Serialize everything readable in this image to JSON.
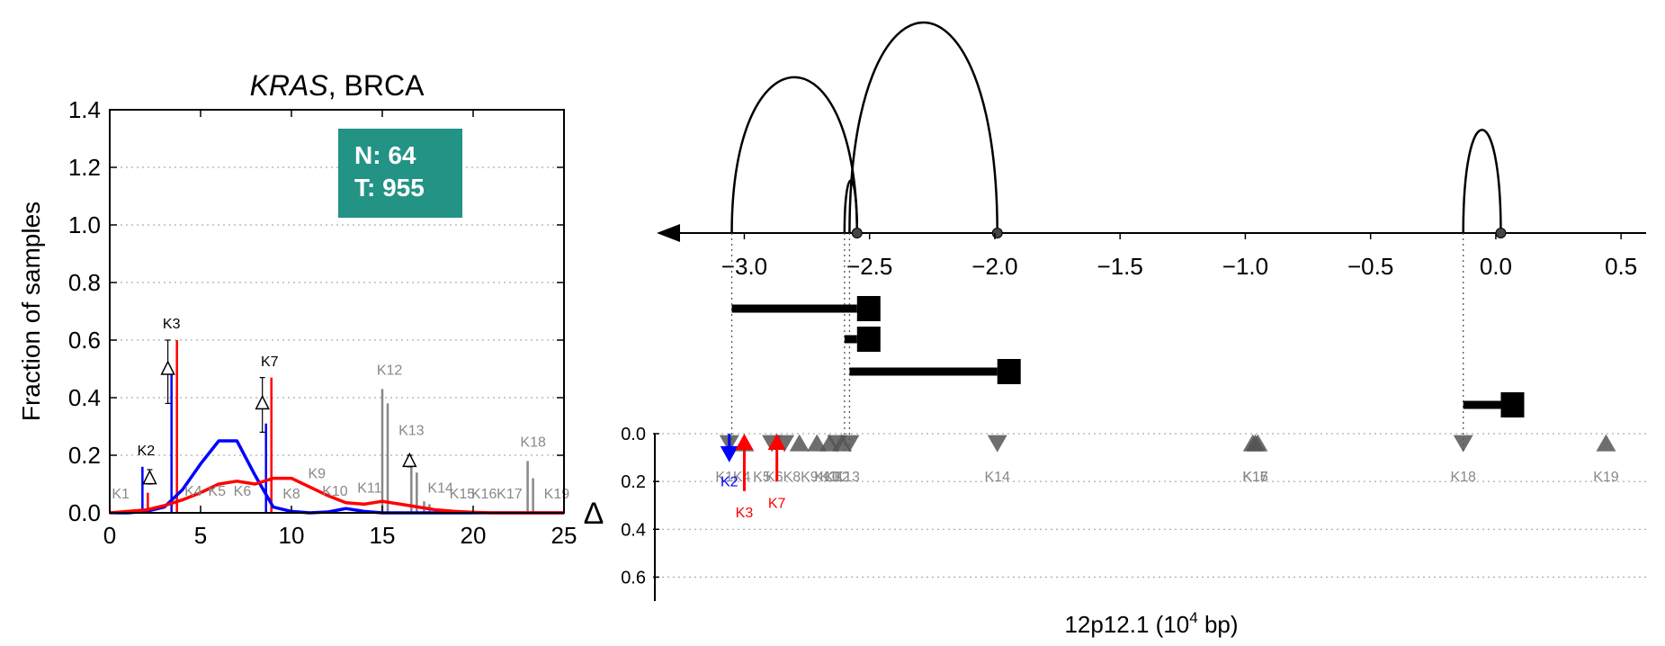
{
  "chart_data": [
    {
      "type": "line",
      "title_gene": "KRAS",
      "title_rest": ", BRCA",
      "xlabel": "",
      "ylabel": "Fraction of samples",
      "xlim": [
        0,
        25
      ],
      "ylim": [
        0,
        1.4
      ],
      "xticks": [
        "0",
        "5",
        "10",
        "15",
        "20",
        "25"
      ],
      "yticks": [
        "0.0",
        "0.2",
        "0.4",
        "0.6",
        "0.8",
        "1.0",
        "1.2",
        "1.4"
      ],
      "xtick_values": [
        0,
        5,
        10,
        15,
        20,
        25
      ],
      "ytick_values": [
        0,
        0.2,
        0.4,
        0.6,
        0.8,
        1.0,
        1.2,
        1.4
      ],
      "grid": "horizontal dotted",
      "info_box": {
        "lines": [
          "N: 64",
          "T: 955"
        ],
        "color": "#229385"
      },
      "series": [
        {
          "color": "#0000ff",
          "x": [
            0,
            1,
            2,
            3,
            4,
            5,
            6,
            7,
            8,
            9,
            10,
            11,
            12,
            13,
            14,
            15,
            16,
            17,
            18,
            19,
            20,
            21,
            22,
            23,
            24,
            25
          ],
          "values": [
            0,
            0,
            0.005,
            0.02,
            0.08,
            0.17,
            0.25,
            0.25,
            0.13,
            0.02,
            0.005,
            0,
            0.003,
            0.015,
            0.005,
            0,
            0,
            0,
            0,
            0,
            0,
            0,
            0,
            0,
            0,
            0
          ]
        },
        {
          "color": "#ff0000",
          "x": [
            0,
            1,
            2,
            3,
            4,
            5,
            6,
            7,
            8,
            9,
            10,
            11,
            12,
            13,
            14,
            15,
            16,
            17,
            18,
            19,
            20,
            21,
            22,
            23,
            24,
            25
          ],
          "values": [
            0,
            0.005,
            0.01,
            0.025,
            0.045,
            0.07,
            0.1,
            0.11,
            0.1,
            0.12,
            0.12,
            0.09,
            0.06,
            0.035,
            0.03,
            0.04,
            0.03,
            0.02,
            0.01,
            0.005,
            0.002,
            0,
            0,
            0,
            0,
            0
          ]
        }
      ],
      "bars": [
        {
          "label": "K2",
          "x": 1.8,
          "normal": 0.16,
          "tumor": 0.07,
          "highlight": true
        },
        {
          "label": "K3",
          "x": 3.4,
          "normal": 0.48,
          "tumor": 0.6,
          "highlight": true
        },
        {
          "label": "K7",
          "x": 8.6,
          "normal": 0.31,
          "tumor": 0.47,
          "highlight": true
        },
        {
          "label": "K12",
          "x": 15.0,
          "normal": 0.43,
          "tumor": 0.38,
          "highlight": false
        },
        {
          "label": "K13",
          "x": 16.6,
          "normal": 0.16,
          "tumor": 0.14,
          "highlight": false
        },
        {
          "label": "K14",
          "x": 17.3,
          "normal": 0.04,
          "tumor": 0.03,
          "highlight": false
        },
        {
          "label": "K18",
          "x": 23.0,
          "normal": 0.18,
          "tumor": 0.12,
          "highlight": false
        }
      ],
      "delta_markers": [
        {
          "x": 2.2,
          "y": 0.12,
          "err": [
            0.1,
            0.15
          ]
        },
        {
          "x": 3.2,
          "y": 0.5,
          "err": [
            0.38,
            0.6
          ]
        },
        {
          "x": 8.4,
          "y": 0.38,
          "err": [
            0.28,
            0.47
          ]
        },
        {
          "x": 16.5,
          "y": 0.18,
          "err": [
            0.16,
            0.2
          ]
        }
      ],
      "labels": [
        {
          "text": "K1",
          "x": 0.6,
          "y": 0.05,
          "color": "#888888"
        },
        {
          "text": "K2",
          "x": 2.0,
          "y": 0.2,
          "color": "#000000"
        },
        {
          "text": "K3",
          "x": 3.4,
          "y": 0.64,
          "color": "#000000"
        },
        {
          "text": "K4",
          "x": 4.6,
          "y": 0.06,
          "color": "#888888"
        },
        {
          "text": "K5",
          "x": 5.9,
          "y": 0.06,
          "color": "#888888"
        },
        {
          "text": "K6",
          "x": 7.3,
          "y": 0.06,
          "color": "#888888"
        },
        {
          "text": "K7",
          "x": 8.8,
          "y": 0.51,
          "color": "#000000"
        },
        {
          "text": "K8",
          "x": 10.0,
          "y": 0.05,
          "color": "#888888"
        },
        {
          "text": "K9",
          "x": 11.4,
          "y": 0.12,
          "color": "#888888"
        },
        {
          "text": "K10",
          "x": 12.4,
          "y": 0.06,
          "color": "#888888"
        },
        {
          "text": "K11",
          "x": 14.3,
          "y": 0.07,
          "color": "#888888"
        },
        {
          "text": "K12",
          "x": 15.4,
          "y": 0.48,
          "color": "#888888"
        },
        {
          "text": "K13",
          "x": 16.6,
          "y": 0.27,
          "color": "#888888"
        },
        {
          "text": "K14",
          "x": 18.2,
          "y": 0.07,
          "color": "#888888"
        },
        {
          "text": "K15",
          "x": 19.4,
          "y": 0.05,
          "color": "#888888"
        },
        {
          "text": "K16",
          "x": 20.6,
          "y": 0.05,
          "color": "#888888"
        },
        {
          "text": "K17",
          "x": 22.0,
          "y": 0.05,
          "color": "#888888"
        },
        {
          "text": "K18",
          "x": 23.3,
          "y": 0.23,
          "color": "#888888"
        },
        {
          "text": "K19",
          "x": 24.6,
          "y": 0.05,
          "color": "#888888"
        }
      ]
    },
    {
      "type": "scatter",
      "xlabel_base": "12p12.1 (10",
      "xlabel_exp": "4",
      "xlabel_tail": " bp)",
      "ylabel": "Δ",
      "xlim": [
        -3.35,
        0.6
      ],
      "xticks": [
        "−3.0",
        "−2.5",
        "−2.0",
        "−1.5",
        "−1.0",
        "−0.5",
        "0.0",
        "0.5"
      ],
      "xtick_values": [
        -3.0,
        -2.5,
        -2.0,
        -1.5,
        -1.0,
        -0.5,
        0.0,
        0.5
      ],
      "ylim": [
        0,
        0.7
      ],
      "yticks": [
        "0.0",
        "0.2",
        "0.4",
        "0.6"
      ],
      "ytick_values": [
        0,
        0.2,
        0.4,
        0.6
      ],
      "grid": "horizontal dotted",
      "arcs": [
        {
          "x1": -3.05,
          "x2": -2.55,
          "height": 0.74
        },
        {
          "x1": -2.58,
          "x2": -1.99,
          "height": 1.0
        },
        {
          "x1": -2.6,
          "x2": -2.55,
          "height": 0.25
        },
        {
          "x1": -0.13,
          "x2": 0.02,
          "height": 0.49
        }
      ],
      "arc_nodes": [
        -2.55,
        -1.99,
        0.02
      ],
      "transcripts": [
        {
          "start": -3.05,
          "end": -2.55
        },
        {
          "start": -2.6,
          "end": -2.55
        },
        {
          "start": -2.58,
          "end": -1.99
        },
        {
          "start": -0.13,
          "end": 0.02
        }
      ],
      "dotted_guides": [
        -3.05,
        -2.6,
        -2.58,
        -0.13
      ],
      "points": [
        {
          "label": "K1",
          "x": -3.06,
          "dir": "down"
        },
        {
          "label": "K4",
          "x": -3.0,
          "dir": "up"
        },
        {
          "label": "K5",
          "x": -2.89,
          "dir": "down"
        },
        {
          "label": "K6",
          "x": -2.84,
          "dir": "down"
        },
        {
          "label": "K8",
          "x": -2.78,
          "dir": "up"
        },
        {
          "label": "K9",
          "x": -2.71,
          "dir": "up"
        },
        {
          "label": "K10",
          "x": -2.66,
          "dir": "up"
        },
        {
          "label": "K11",
          "x": -2.63,
          "dir": "down"
        },
        {
          "label": "K12",
          "x": -2.61,
          "dir": "up"
        },
        {
          "label": "K13",
          "x": -2.58,
          "dir": "down"
        },
        {
          "label": "K14",
          "x": -1.99,
          "dir": "down"
        },
        {
          "label": "K15",
          "x": -0.97,
          "dir": "up"
        },
        {
          "label": "K16",
          "x": -0.96,
          "dir": "up"
        },
        {
          "label": "K17",
          "x": -0.95,
          "dir": "up"
        },
        {
          "label": "K18",
          "x": -0.13,
          "dir": "down"
        },
        {
          "label": "K19",
          "x": 0.44,
          "dir": "up"
        }
      ],
      "point_labels": [
        {
          "text": "K1",
          "x": -3.08
        },
        {
          "text": "K4",
          "x": -3.01
        },
        {
          "text": "K5",
          "x": -2.93
        },
        {
          "text": "K6",
          "x": -2.88
        },
        {
          "text": "K8",
          "x": -2.81
        },
        {
          "text": "K9",
          "x": -2.74
        },
        {
          "text": "K10",
          "x": -2.67
        },
        {
          "text": "K11",
          "x": -2.65
        },
        {
          "text": "K12",
          "x": -2.63
        },
        {
          "text": "K13",
          "x": -2.59
        },
        {
          "text": "K14",
          "x": -1.99
        },
        {
          "text": "K15",
          "x": -0.96
        },
        {
          "text": "K16",
          "x": -0.96
        },
        {
          "text": "K17",
          "x": -0.96
        },
        {
          "text": "K18",
          "x": -0.13
        },
        {
          "text": "K19",
          "x": 0.44
        }
      ],
      "highlight_arrows": [
        {
          "label": "K2",
          "x": -3.06,
          "dir": "down",
          "y0": 0.0,
          "y1": 0.12,
          "color": "#0000ff",
          "label_y": 0.22
        },
        {
          "label": "K3",
          "x": -3.0,
          "dir": "up",
          "y0": 0.24,
          "y1": 0.0,
          "color": "#ff0000",
          "label_y": 0.35
        },
        {
          "label": "K7",
          "x": -2.87,
          "dir": "up",
          "y0": 0.2,
          "y1": 0.0,
          "color": "#ff0000",
          "label_y": 0.31
        }
      ],
      "colors": {
        "marker": "#555555",
        "line": "#000000"
      }
    }
  ]
}
